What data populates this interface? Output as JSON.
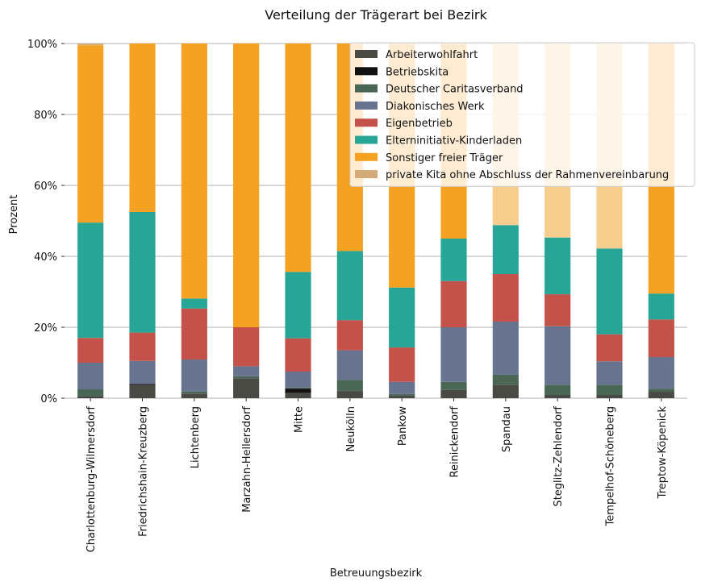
{
  "chart_data": {
    "type": "bar",
    "stacked": true,
    "title": "Verteilung der Trägerart bei Bezirk",
    "xlabel": "Betreuungsbezirk",
    "ylabel": "Prozent",
    "ylim": [
      0,
      100
    ],
    "yticks": [
      "0%",
      "20%",
      "40%",
      "60%",
      "80%",
      "100%"
    ],
    "grid": "horizontal",
    "legend_position": "top-right",
    "categories": [
      "Charlottenburg-Wilmersdorf",
      "Friedrichshain-Kreuzberg",
      "Lichtenberg",
      "Marzahn-Hellersdorf",
      "Mitte",
      "Neukölln",
      "Pankow",
      "Reinickendorf",
      "Spandau",
      "Steglitz-Zehlendorf",
      "Tempelhof-Schöneberg",
      "Treptow-Köpenick"
    ],
    "series": [
      {
        "name": "Arbeiterwohlfahrt",
        "color": "#4a4a44",
        "values": [
          0.3,
          3.7,
          1.2,
          5.5,
          1.5,
          2.0,
          0.7,
          2.3,
          3.8,
          0.7,
          0.7,
          1.8
        ]
      },
      {
        "name": "Betriebskita",
        "color": "#111111",
        "values": [
          0.2,
          0.3,
          0.1,
          0.1,
          1.2,
          0.1,
          0.0,
          0.0,
          0.0,
          0.1,
          0.1,
          0.1
        ]
      },
      {
        "name": "Deutscher Caritasverband",
        "color": "#4a6655",
        "values": [
          2.0,
          0.0,
          0.6,
          0.6,
          0.3,
          3.0,
          0.5,
          2.3,
          2.8,
          3.0,
          3.0,
          0.8
        ]
      },
      {
        "name": "Diakonisches Werk",
        "color": "#68748f",
        "values": [
          7.5,
          6.5,
          9.0,
          2.8,
          4.5,
          8.4,
          3.4,
          15.4,
          15.0,
          16.5,
          6.6,
          8.9
        ]
      },
      {
        "name": "Eigenbetrieb",
        "color": "#c5524a",
        "values": [
          7.0,
          8.0,
          14.4,
          11.0,
          9.4,
          8.5,
          9.7,
          13.0,
          13.4,
          9.0,
          7.6,
          10.6
        ]
      },
      {
        "name": "Elterninitiativ-Kinderladen",
        "color": "#27a596",
        "values": [
          32.5,
          34.0,
          2.8,
          0.0,
          18.7,
          19.5,
          16.9,
          12.0,
          13.8,
          16.0,
          24.2,
          7.3
        ]
      },
      {
        "name": "Sonstiger freier Träger",
        "color": "#f5a122",
        "values": [
          50.0,
          47.5,
          71.9,
          80.0,
          64.4,
          58.5,
          68.8,
          55.0,
          0.0,
          0.0,
          0.0,
          70.5
        ]
      },
      {
        "name": "private Kita ohne Abschluss der Rahmenvereinbarung",
        "color": "#d4aa78",
        "values": [
          0.5,
          0.0,
          0.0,
          0.0,
          0.0,
          0.0,
          0.0,
          0.0,
          0.0,
          0.0,
          0.0,
          0.0
        ]
      },
      {
        "name": "",
        "color": "#f8ce8f",
        "values": [
          0.0,
          0.0,
          0.0,
          0.0,
          0.0,
          0.0,
          0.0,
          0.0,
          51.2,
          54.7,
          57.8,
          0.0
        ]
      }
    ]
  }
}
